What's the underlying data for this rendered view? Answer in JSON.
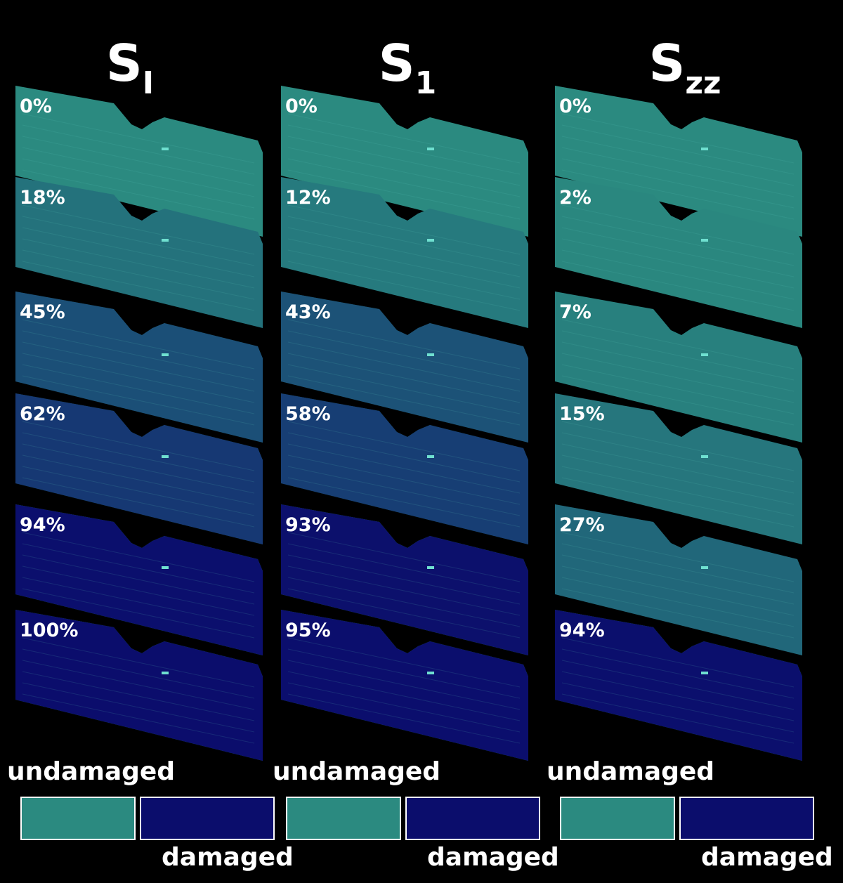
{
  "columns": [
    {
      "title": {
        "main": "S",
        "sub": "I"
      },
      "panels": [
        "0%",
        "18%",
        "45%",
        "62%",
        "94%",
        "100%"
      ],
      "legend": {
        "undamaged": "undamaged",
        "damaged": "damaged"
      }
    },
    {
      "title": {
        "main": "S",
        "sub": "1"
      },
      "panels": [
        "0%",
        "12%",
        "43%",
        "58%",
        "93%",
        "95%"
      ],
      "legend": {
        "undamaged": "undamaged",
        "damaged": "damaged"
      }
    },
    {
      "title": {
        "main": "S",
        "sub": "zz"
      },
      "panels": [
        "0%",
        "2%",
        "7%",
        "15%",
        "27%",
        "94%"
      ],
      "legend": {
        "undamaged": "undamaged",
        "damaged": "damaged"
      }
    }
  ]
}
